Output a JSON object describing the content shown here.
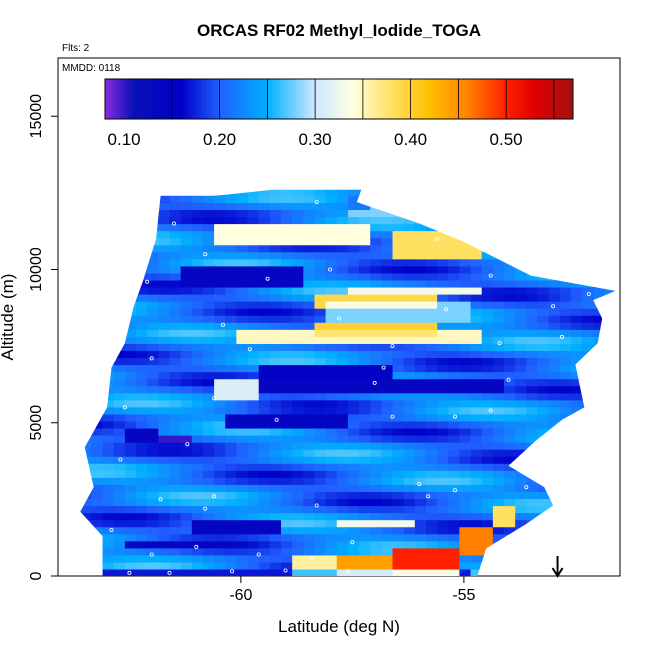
{
  "chart_data": {
    "type": "heatmap",
    "title": "ORCAS RF02 Methyl_Iodide_TOGA",
    "annotations": {
      "flights": "Flts: 2",
      "date": "MMDD: 0118"
    },
    "xlabel": "Latitude (deg N)",
    "ylabel": "Altitude (m)",
    "xlim": [
      -64.1,
      -51.5
    ],
    "ylim": [
      0,
      16900
    ],
    "x_ticks": [
      {
        "value": -60,
        "label": "-60"
      },
      {
        "value": -55,
        "label": "-55"
      }
    ],
    "y_ticks": [
      {
        "value": 0,
        "label": "0"
      },
      {
        "value": 5000,
        "label": "5000"
      },
      {
        "value": 10000,
        "label": "10000"
      },
      {
        "value": 15000,
        "label": "15000"
      }
    ],
    "colorbar": {
      "range": [
        0.08,
        0.57
      ],
      "ticks": [
        {
          "value": 0.1,
          "label": "0.10"
        },
        {
          "value": 0.2,
          "label": "0.20"
        },
        {
          "value": 0.3,
          "label": "0.30"
        },
        {
          "value": 0.4,
          "label": "0.40"
        },
        {
          "value": 0.5,
          "label": "0.50"
        }
      ],
      "segment_edges": [
        0.15,
        0.2,
        0.25,
        0.3,
        0.35,
        0.4,
        0.45,
        0.5,
        0.55
      ],
      "stops": [
        {
          "v": 0.08,
          "c": "#8a2be2"
        },
        {
          "v": 0.11,
          "c": "#0a10b8"
        },
        {
          "v": 0.16,
          "c": "#0000c8"
        },
        {
          "v": 0.2,
          "c": "#2060ff"
        },
        {
          "v": 0.25,
          "c": "#00b0ff"
        },
        {
          "v": 0.3,
          "c": "#cde8ff"
        },
        {
          "v": 0.34,
          "c": "#ffffe0"
        },
        {
          "v": 0.38,
          "c": "#ffe060"
        },
        {
          "v": 0.42,
          "c": "#ffc000"
        },
        {
          "v": 0.46,
          "c": "#ff8000"
        },
        {
          "v": 0.5,
          "c": "#ff2000"
        },
        {
          "v": 0.53,
          "c": "#e00000"
        },
        {
          "v": 0.57,
          "c": "#a01010"
        }
      ]
    },
    "marker": {
      "x": -52.9,
      "type": "arrow-down",
      "color": "#000000"
    },
    "regions": [
      {
        "lat": [
          -63.0,
          -54.8
        ],
        "alt": [
          0,
          280
        ],
        "value": 0.17
      },
      {
        "lat": [
          -56.5,
          -55.0
        ],
        "alt": [
          0,
          850
        ],
        "value": 0.5
      },
      {
        "lat": [
          -57.8,
          -56.5
        ],
        "alt": [
          0,
          700
        ],
        "value": 0.44
      },
      {
        "lat": [
          -58.8,
          -57.8
        ],
        "alt": [
          0,
          650
        ],
        "value": 0.36
      },
      {
        "lat": [
          -55.2,
          -54.4
        ],
        "alt": [
          800,
          1500
        ],
        "value": 0.46
      },
      {
        "lat": [
          -54.4,
          -53.8
        ],
        "alt": [
          1500,
          2200
        ],
        "value": 0.38
      },
      {
        "lat": [
          -57.8,
          -56.0
        ],
        "alt": [
          1500,
          1900
        ],
        "value": 0.33
      },
      {
        "lat": [
          -61.0,
          -59.2
        ],
        "alt": [
          1400,
          1750
        ],
        "value": 0.14
      },
      {
        "lat": [
          -62.6,
          -60.2
        ],
        "alt": [
          900,
          1250
        ],
        "value": 0.14
      },
      {
        "lat": [
          -60.4,
          -57.6
        ],
        "alt": [
          4900,
          5400
        ],
        "value": 0.14
      },
      {
        "lat": [
          -62.6,
          -61.8
        ],
        "alt": [
          4300,
          4900
        ],
        "value": 0.14
      },
      {
        "lat": [
          -61.9,
          -61.2
        ],
        "alt": [
          4350,
          4700
        ],
        "value": 0.1
      },
      {
        "lat": [
          -59.5,
          -54.0
        ],
        "alt": [
          5900,
          6400
        ],
        "value": 0.14
      },
      {
        "lat": [
          -59.6,
          -56.6
        ],
        "alt": [
          6500,
          6800
        ],
        "value": 0.15
      },
      {
        "lat": [
          -60.6,
          -59.6
        ],
        "alt": [
          5800,
          6500
        ],
        "value": 0.31
      },
      {
        "lat": [
          -60.2,
          -54.5
        ],
        "alt": [
          7600,
          8100
        ],
        "value": 0.35
      },
      {
        "lat": [
          -58.3,
          -55.5
        ],
        "alt": [
          7900,
          8300
        ],
        "value": 0.4
      },
      {
        "lat": [
          -58.0,
          -54.8
        ],
        "alt": [
          8300,
          8900
        ],
        "value": 0.28
      },
      {
        "lat": [
          -58.4,
          -55.6
        ],
        "alt": [
          8700,
          9200
        ],
        "value": 0.39
      },
      {
        "lat": [
          -61.3,
          -58.6
        ],
        "alt": [
          9400,
          10200
        ],
        "value": 0.14
      },
      {
        "lat": [
          -57.5,
          -54.5
        ],
        "alt": [
          9200,
          9500
        ],
        "value": 0.33
      },
      {
        "lat": [
          -60.5,
          -57.0
        ],
        "alt": [
          10900,
          11500
        ],
        "value": 0.34
      },
      {
        "lat": [
          -56.5,
          -54.5
        ],
        "alt": [
          10400,
          11300
        ],
        "value": 0.38
      },
      {
        "lat": [
          -57.7,
          -55.6
        ],
        "alt": [
          11700,
          12400
        ],
        "value": 0.28
      },
      {
        "lat": [
          -57.6,
          -57.0
        ],
        "alt": [
          12000,
          12400
        ],
        "value": 0.15
      }
    ],
    "samples": [
      [
        -62.5,
        100
      ],
      [
        -61.6,
        100
      ],
      [
        -60.2,
        150
      ],
      [
        -59.0,
        180
      ],
      [
        -57.6,
        150
      ],
      [
        -62.0,
        700
      ],
      [
        -61.0,
        950
      ],
      [
        -59.6,
        700
      ],
      [
        -58.4,
        600
      ],
      [
        -57.5,
        1100
      ],
      [
        -62.9,
        1500
      ],
      [
        -61.8,
        2500
      ],
      [
        -60.6,
        2600
      ],
      [
        -58.3,
        2300
      ],
      [
        -55.8,
        2600
      ],
      [
        -55.2,
        2800
      ],
      [
        -53.6,
        2900
      ],
      [
        -62.7,
        3800
      ],
      [
        -61.2,
        4300
      ],
      [
        -59.2,
        5100
      ],
      [
        -56.6,
        5200
      ],
      [
        -55.2,
        5200
      ],
      [
        -54.4,
        5400
      ],
      [
        -62.6,
        5500
      ],
      [
        -60.6,
        5800
      ],
      [
        -57.0,
        6300
      ],
      [
        -54.0,
        6400
      ],
      [
        -62.0,
        7100
      ],
      [
        -59.8,
        7400
      ],
      [
        -56.6,
        7500
      ],
      [
        -54.2,
        7600
      ],
      [
        -52.8,
        7800
      ],
      [
        -60.4,
        8200
      ],
      [
        -57.8,
        8400
      ],
      [
        -55.4,
        8700
      ],
      [
        -53.0,
        8800
      ],
      [
        -62.1,
        9600
      ],
      [
        -59.4,
        9700
      ],
      [
        -58.0,
        10000
      ],
      [
        -54.4,
        9800
      ],
      [
        -52.2,
        9200
      ],
      [
        -58.3,
        12200
      ],
      [
        -57.1,
        12300
      ],
      [
        -56.0,
        12300
      ],
      [
        -55.6,
        11000
      ],
      [
        -61.5,
        11500
      ],
      [
        -60.8,
        10500
      ],
      [
        -56.8,
        6800
      ],
      [
        -60.8,
        2200
      ],
      [
        -56.0,
        3000
      ]
    ]
  }
}
